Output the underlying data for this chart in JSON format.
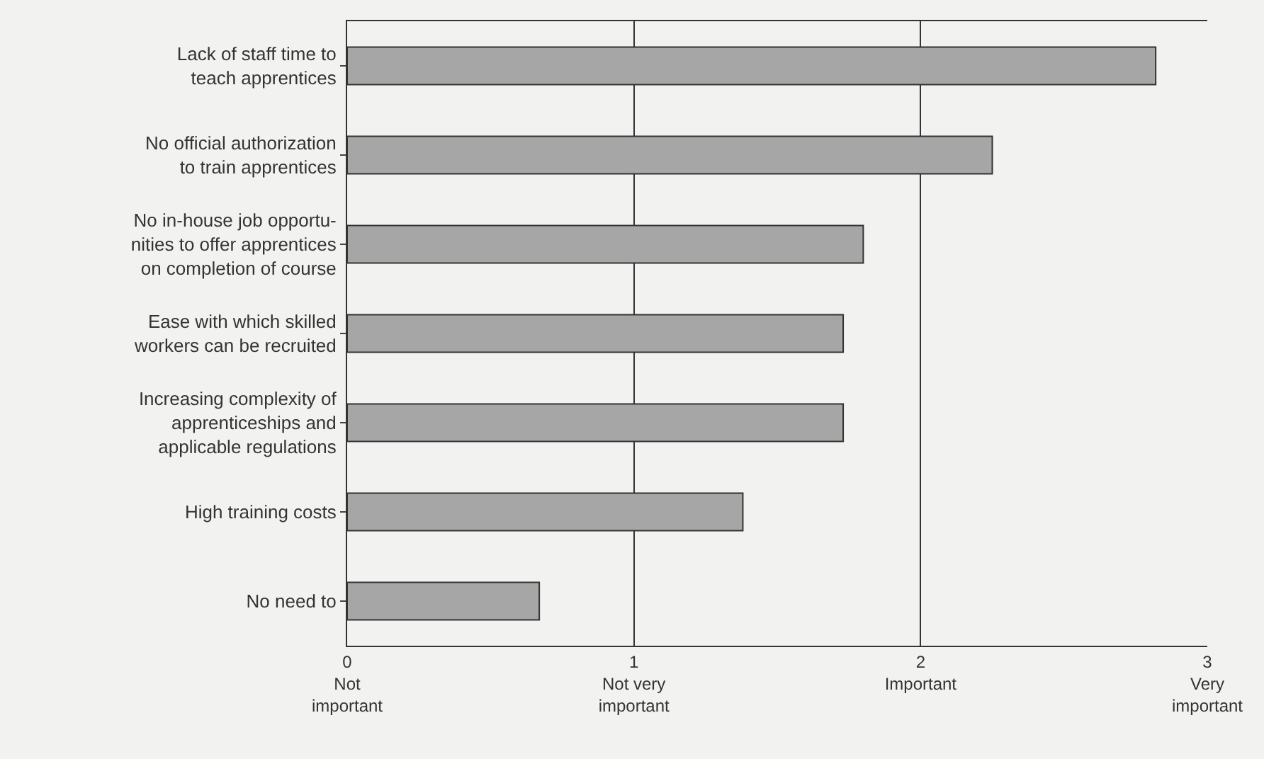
{
  "chart_data": {
    "type": "bar",
    "orientation": "horizontal",
    "categories": [
      "Lack of staff time to\nteach apprentices",
      "No official authorization\nto train apprentices",
      "No in-house job opportu-\nnities to offer apprentices\non completion of course",
      "Ease with which skilled\nworkers can be recruited",
      "Increasing complexity of\napprenticeships and\napplicable regulations",
      "High training costs",
      "No need to"
    ],
    "values": [
      2.82,
      2.25,
      1.8,
      1.73,
      1.73,
      1.38,
      0.67
    ],
    "color": "#a6a6a6",
    "xlim": [
      0,
      3
    ],
    "xticks": [
      {
        "value": 0,
        "label": "0\nNot\nimportant"
      },
      {
        "value": 1,
        "label": "1\nNot very\nimportant"
      },
      {
        "value": 2,
        "label": "2\nImportant"
      },
      {
        "value": 3,
        "label": "3\nVery\nimportant"
      }
    ],
    "grid": "x",
    "legend": false
  }
}
